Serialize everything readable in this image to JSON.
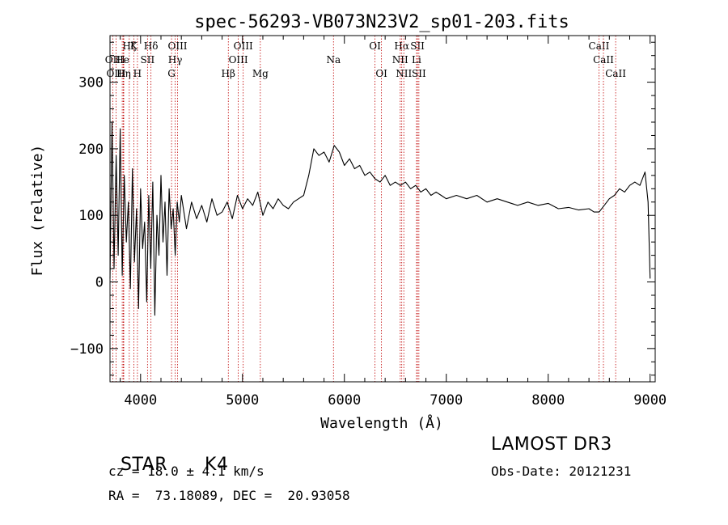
{
  "chart_data": {
    "type": "line",
    "title": "spec-56293-VB073N23V2_sp01-203.fits",
    "xlabel": "Wavelength (Å)",
    "ylabel": "Flux (relative)",
    "xlim": [
      3700,
      9050
    ],
    "ylim": [
      -150,
      370
    ],
    "xticks": [
      4000,
      5000,
      6000,
      7000,
      8000,
      9000
    ],
    "yticks": [
      -100,
      0,
      100,
      200,
      300
    ],
    "series": [
      {
        "name": "flux",
        "x": [
          3700,
          3720,
          3740,
          3760,
          3780,
          3800,
          3820,
          3840,
          3860,
          3880,
          3900,
          3920,
          3940,
          3960,
          3980,
          4000,
          4020,
          4040,
          4060,
          4080,
          4100,
          4120,
          4140,
          4160,
          4180,
          4200,
          4220,
          4240,
          4260,
          4280,
          4300,
          4320,
          4340,
          4360,
          4380,
          4400,
          4450,
          4500,
          4550,
          4600,
          4650,
          4700,
          4750,
          4800,
          4850,
          4900,
          4950,
          5000,
          5050,
          5100,
          5150,
          5200,
          5250,
          5300,
          5350,
          5400,
          5450,
          5500,
          5550,
          5600,
          5650,
          5700,
          5750,
          5800,
          5850,
          5900,
          5950,
          6000,
          6050,
          6100,
          6150,
          6200,
          6250,
          6300,
          6350,
          6400,
          6450,
          6500,
          6550,
          6600,
          6650,
          6700,
          6750,
          6800,
          6850,
          6900,
          6950,
          7000,
          7100,
          7200,
          7300,
          7400,
          7500,
          7600,
          7700,
          7800,
          7900,
          8000,
          8100,
          8200,
          8300,
          8400,
          8450,
          8500,
          8550,
          8600,
          8650,
          8700,
          8750,
          8800,
          8850,
          8900,
          8950,
          8980,
          9000
        ],
        "y": [
          5,
          240,
          20,
          190,
          40,
          230,
          10,
          160,
          60,
          120,
          -10,
          170,
          30,
          110,
          -40,
          140,
          50,
          90,
          -30,
          130,
          20,
          150,
          -50,
          100,
          40,
          160,
          60,
          120,
          10,
          140,
          80,
          110,
          40,
          120,
          90,
          130,
          80,
          120,
          95,
          115,
          90,
          125,
          100,
          105,
          120,
          95,
          130,
          110,
          125,
          115,
          135,
          100,
          120,
          110,
          125,
          115,
          110,
          120,
          125,
          130,
          160,
          200,
          190,
          195,
          180,
          205,
          195,
          175,
          185,
          170,
          175,
          160,
          165,
          155,
          150,
          160,
          145,
          150,
          145,
          150,
          140,
          145,
          135,
          140,
          130,
          135,
          130,
          125,
          130,
          125,
          130,
          120,
          125,
          120,
          115,
          120,
          115,
          118,
          110,
          112,
          108,
          110,
          105,
          105,
          115,
          125,
          130,
          140,
          135,
          145,
          150,
          145,
          165,
          120,
          5
        ]
      }
    ],
    "emission_lines": [
      {
        "label": "Hζ",
        "wave": 3889,
        "row": 1
      },
      {
        "label": "K",
        "wave": 3934,
        "row": 1
      },
      {
        "label": "Hδ",
        "wave": 4102,
        "row": 1
      },
      {
        "label": "OIII",
        "wave": 4363,
        "row": 1
      },
      {
        "label": "OIII",
        "wave": 5007,
        "row": 1
      },
      {
        "label": "OI",
        "wave": 6300,
        "row": 1
      },
      {
        "label": "Hα",
        "wave": 6563,
        "row": 1
      },
      {
        "label": "SII",
        "wave": 6717,
        "row": 1
      },
      {
        "label": "CaII",
        "wave": 8498,
        "row": 1
      },
      {
        "label": "OII",
        "wave": 3727,
        "row": 2
      },
      {
        "label": "He",
        "wave": 3820,
        "row": 2
      },
      {
        "label": "I",
        "wave": 3830,
        "row": 2
      },
      {
        "label": "SII",
        "wave": 4068,
        "row": 2
      },
      {
        "label": "Hγ",
        "wave": 4340,
        "row": 2
      },
      {
        "label": "OIII",
        "wave": 4959,
        "row": 2
      },
      {
        "label": "Na",
        "wave": 5893,
        "row": 2
      },
      {
        "label": "NII",
        "wave": 6548,
        "row": 2
      },
      {
        "label": "Li",
        "wave": 6708,
        "row": 2
      },
      {
        "label": "CaII",
        "wave": 8542,
        "row": 2
      },
      {
        "label": "OIII",
        "wave": 3760,
        "row": 3
      },
      {
        "label": "Hη",
        "wave": 3835,
        "row": 3
      },
      {
        "label": "H",
        "wave": 3969,
        "row": 3
      },
      {
        "label": "G",
        "wave": 4304,
        "row": 3
      },
      {
        "label": "Hβ",
        "wave": 4861,
        "row": 3
      },
      {
        "label": "Mg",
        "wave": 5175,
        "row": 3
      },
      {
        "label": "OI",
        "wave": 6364,
        "row": 3
      },
      {
        "label": "NII",
        "wave": 6583,
        "row": 3
      },
      {
        "label": "SII",
        "wave": 6731,
        "row": 3
      },
      {
        "label": "CaII",
        "wave": 8662,
        "row": 3
      }
    ]
  },
  "info": {
    "object_class": "STAR",
    "subclass": "K4",
    "survey": "LAMOST DR3",
    "cz_line": "cz = 18.0 ± 4.1 km/s",
    "obs_date_line": "Obs-Date: 20121231",
    "radec_line": "RA =  73.18089, DEC =  20.93058"
  },
  "colors": {
    "axis": "#000000",
    "spectrum": "#000000",
    "emission_line": "#c00000",
    "background": "#ffffff"
  }
}
